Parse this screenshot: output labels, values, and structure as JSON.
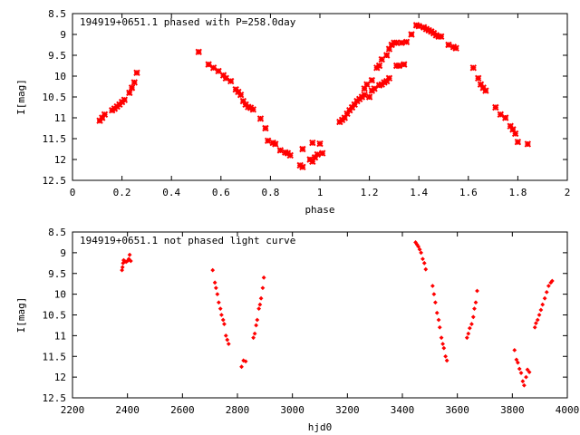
{
  "chart_data": [
    {
      "type": "scatter",
      "title": "194919+0651.1 phased with P=258.0day",
      "xlabel": "phase",
      "ylabel": "I[mag]",
      "xlim": [
        0,
        2
      ],
      "ylim": [
        12.5,
        8.5
      ],
      "y_inverted": true,
      "x_ticks": [
        0,
        0.2,
        0.4,
        0.6,
        0.8,
        1,
        1.2,
        1.4,
        1.6,
        1.8,
        2
      ],
      "x_tick_labels": [
        "0",
        "0.2",
        "0.4",
        "0.6",
        "0.8",
        "1",
        "1.2",
        "1.4",
        "1.6",
        "1.8",
        "2"
      ],
      "y_ticks": [
        8.5,
        9,
        9.5,
        10,
        10.5,
        11,
        11.5,
        12,
        12.5
      ],
      "y_tick_labels": [
        "8.5",
        "9",
        "9.5",
        "10",
        "10.5",
        "11",
        "11.5",
        "12",
        "12.5"
      ],
      "grid": false,
      "legend": "none",
      "marker_color": "#ff0000",
      "marker": "x-cross",
      "points": [
        [
          0.11,
          11.07
        ],
        [
          0.12,
          11.0
        ],
        [
          0.13,
          10.92
        ],
        [
          0.16,
          10.82
        ],
        [
          0.17,
          10.78
        ],
        [
          0.18,
          10.73
        ],
        [
          0.19,
          10.68
        ],
        [
          0.2,
          10.62
        ],
        [
          0.21,
          10.57
        ],
        [
          0.23,
          10.4
        ],
        [
          0.24,
          10.28
        ],
        [
          0.25,
          10.15
        ],
        [
          0.26,
          9.92
        ],
        [
          0.51,
          9.42
        ],
        [
          0.55,
          9.72
        ],
        [
          0.57,
          9.8
        ],
        [
          0.59,
          9.88
        ],
        [
          0.61,
          9.98
        ],
        [
          0.62,
          10.05
        ],
        [
          0.64,
          10.12
        ],
        [
          0.66,
          10.32
        ],
        [
          0.67,
          10.38
        ],
        [
          0.68,
          10.45
        ],
        [
          0.69,
          10.6
        ],
        [
          0.7,
          10.68
        ],
        [
          0.71,
          10.74
        ],
        [
          0.72,
          10.76
        ],
        [
          0.73,
          10.8
        ],
        [
          0.76,
          11.02
        ],
        [
          0.78,
          11.25
        ],
        [
          0.79,
          11.55
        ],
        [
          0.81,
          11.6
        ],
        [
          0.82,
          11.63
        ],
        [
          0.84,
          11.78
        ],
        [
          0.86,
          11.83
        ],
        [
          0.87,
          11.85
        ],
        [
          0.88,
          11.9
        ],
        [
          0.92,
          12.14
        ],
        [
          0.93,
          12.18
        ],
        [
          0.93,
          11.75
        ],
        [
          0.96,
          12.0
        ],
        [
          0.97,
          12.05
        ],
        [
          0.97,
          11.6
        ],
        [
          0.98,
          11.95
        ],
        [
          0.99,
          11.88
        ],
        [
          1.0,
          11.62
        ],
        [
          1.01,
          11.85
        ],
        [
          1.08,
          11.1
        ],
        [
          1.09,
          11.05
        ],
        [
          1.1,
          11.0
        ],
        [
          1.11,
          10.9
        ],
        [
          1.12,
          10.82
        ],
        [
          1.13,
          10.75
        ],
        [
          1.14,
          10.68
        ],
        [
          1.15,
          10.6
        ],
        [
          1.16,
          10.55
        ],
        [
          1.17,
          10.5
        ],
        [
          1.18,
          10.45
        ],
        [
          1.18,
          10.3
        ],
        [
          1.19,
          10.2
        ],
        [
          1.2,
          10.5
        ],
        [
          1.21,
          10.35
        ],
        [
          1.21,
          10.1
        ],
        [
          1.22,
          10.3
        ],
        [
          1.23,
          9.8
        ],
        [
          1.24,
          9.75
        ],
        [
          1.24,
          10.22
        ],
        [
          1.25,
          10.2
        ],
        [
          1.25,
          9.6
        ],
        [
          1.26,
          10.15
        ],
        [
          1.27,
          10.12
        ],
        [
          1.27,
          9.5
        ],
        [
          1.28,
          10.05
        ],
        [
          1.28,
          9.35
        ],
        [
          1.29,
          9.25
        ],
        [
          1.3,
          9.2
        ],
        [
          1.31,
          9.75
        ],
        [
          1.31,
          9.2
        ],
        [
          1.32,
          9.75
        ],
        [
          1.33,
          9.2
        ],
        [
          1.34,
          9.72
        ],
        [
          1.35,
          9.18
        ],
        [
          1.37,
          9.0
        ],
        [
          1.39,
          8.78
        ],
        [
          1.4,
          8.8
        ],
        [
          1.42,
          8.83
        ],
        [
          1.43,
          8.87
        ],
        [
          1.44,
          8.9
        ],
        [
          1.45,
          8.93
        ],
        [
          1.46,
          8.97
        ],
        [
          1.47,
          9.02
        ],
        [
          1.48,
          9.05
        ],
        [
          1.49,
          9.05
        ],
        [
          1.52,
          9.25
        ],
        [
          1.54,
          9.3
        ],
        [
          1.55,
          9.33
        ],
        [
          1.62,
          9.8
        ],
        [
          1.64,
          10.05
        ],
        [
          1.65,
          10.2
        ],
        [
          1.66,
          10.28
        ],
        [
          1.67,
          10.35
        ],
        [
          1.71,
          10.75
        ],
        [
          1.73,
          10.92
        ],
        [
          1.75,
          11.0
        ],
        [
          1.77,
          11.2
        ],
        [
          1.78,
          11.28
        ],
        [
          1.79,
          11.38
        ],
        [
          1.8,
          11.58
        ],
        [
          1.84,
          11.63
        ]
      ]
    },
    {
      "type": "scatter",
      "title": "194919+0651.1 not phased light curve",
      "xlabel": "hjd0",
      "ylabel": "I[mag]",
      "xlim": [
        2200,
        4000
      ],
      "ylim": [
        12.5,
        8.5
      ],
      "y_inverted": true,
      "x_ticks": [
        2200,
        2400,
        2600,
        2800,
        3000,
        3200,
        3400,
        3600,
        3800,
        4000
      ],
      "x_tick_labels": [
        "2200",
        "2400",
        "2600",
        "2800",
        "3000",
        "3200",
        "3400",
        "3600",
        "3800",
        "4000"
      ],
      "y_ticks": [
        8.5,
        9,
        9.5,
        10,
        10.5,
        11,
        11.5,
        12,
        12.5
      ],
      "y_tick_labels": [
        "8.5",
        "9",
        "9.5",
        "10",
        "10.5",
        "11",
        "11.5",
        "12",
        "12.5"
      ],
      "grid": false,
      "legend": "none",
      "marker_color": "#ff0000",
      "marker": "diamond",
      "points": [
        [
          2380,
          9.42
        ],
        [
          2382,
          9.35
        ],
        [
          2384,
          9.25
        ],
        [
          2386,
          9.18
        ],
        [
          2390,
          9.2
        ],
        [
          2395,
          9.22
        ],
        [
          2400,
          9.2
        ],
        [
          2405,
          9.15
        ],
        [
          2408,
          9.05
        ],
        [
          2412,
          9.2
        ],
        [
          2710,
          9.42
        ],
        [
          2718,
          9.72
        ],
        [
          2722,
          9.85
        ],
        [
          2727,
          10.0
        ],
        [
          2732,
          10.2
        ],
        [
          2738,
          10.35
        ],
        [
          2742,
          10.5
        ],
        [
          2748,
          10.62
        ],
        [
          2752,
          10.72
        ],
        [
          2758,
          11.0
        ],
        [
          2763,
          11.1
        ],
        [
          2768,
          11.2
        ],
        [
          2815,
          11.75
        ],
        [
          2822,
          11.6
        ],
        [
          2830,
          11.62
        ],
        [
          2858,
          11.05
        ],
        [
          2863,
          10.95
        ],
        [
          2868,
          10.75
        ],
        [
          2872,
          10.62
        ],
        [
          2878,
          10.35
        ],
        [
          2882,
          10.25
        ],
        [
          2886,
          10.1
        ],
        [
          2892,
          9.85
        ],
        [
          2896,
          9.6
        ],
        [
          3448,
          8.75
        ],
        [
          3453,
          8.8
        ],
        [
          3458,
          8.85
        ],
        [
          3463,
          8.92
        ],
        [
          3468,
          9.0
        ],
        [
          3474,
          9.15
        ],
        [
          3480,
          9.25
        ],
        [
          3485,
          9.4
        ],
        [
          3510,
          9.8
        ],
        [
          3515,
          10.0
        ],
        [
          3520,
          10.2
        ],
        [
          3526,
          10.45
        ],
        [
          3532,
          10.62
        ],
        [
          3536,
          10.8
        ],
        [
          3542,
          11.05
        ],
        [
          3547,
          11.2
        ],
        [
          3551,
          11.3
        ],
        [
          3557,
          11.5
        ],
        [
          3562,
          11.6
        ],
        [
          3635,
          11.05
        ],
        [
          3640,
          10.95
        ],
        [
          3645,
          10.82
        ],
        [
          3652,
          10.72
        ],
        [
          3658,
          10.55
        ],
        [
          3662,
          10.35
        ],
        [
          3667,
          10.2
        ],
        [
          3672,
          9.92
        ],
        [
          3808,
          11.35
        ],
        [
          3815,
          11.58
        ],
        [
          3820,
          11.65
        ],
        [
          3826,
          11.8
        ],
        [
          3832,
          11.9
        ],
        [
          3838,
          12.1
        ],
        [
          3843,
          12.2
        ],
        [
          3850,
          12.0
        ],
        [
          3855,
          11.82
        ],
        [
          3862,
          11.88
        ],
        [
          3882,
          10.8
        ],
        [
          3886,
          10.7
        ],
        [
          3892,
          10.62
        ],
        [
          3898,
          10.5
        ],
        [
          3904,
          10.38
        ],
        [
          3910,
          10.25
        ],
        [
          3918,
          10.1
        ],
        [
          3925,
          9.95
        ],
        [
          3932,
          9.8
        ],
        [
          3940,
          9.72
        ],
        [
          3945,
          9.68
        ]
      ]
    }
  ]
}
